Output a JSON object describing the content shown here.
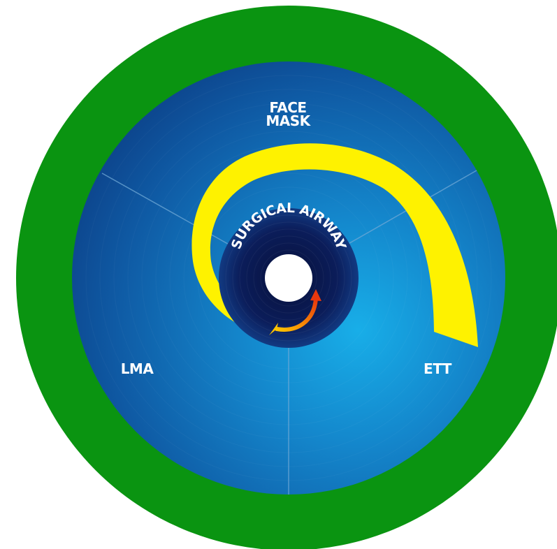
{
  "diagram": {
    "zones": {
      "face_mask": {
        "line1": "FACE",
        "line2": "MASK"
      },
      "lma": "LMA",
      "ett": "ETT",
      "center": "SURGICAL AIRWAY"
    },
    "colors": {
      "outer_ring": "#0a9411",
      "disc_dark": "#0d3f86",
      "disc_light": "#16a7e5",
      "center_dark": "#0a1a52",
      "spiral": "#fef200",
      "arrow_start": "#ffb300",
      "arrow_end": "#e8380e",
      "divider": "#6fa8d6",
      "hole": "#ffffff"
    }
  }
}
